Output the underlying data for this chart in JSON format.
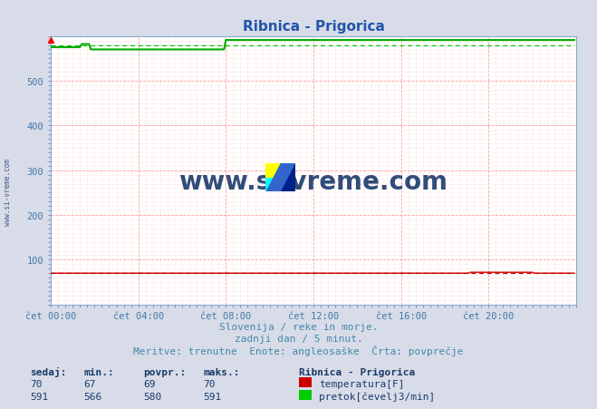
{
  "title": "Ribnica - Prigorica",
  "title_color": "#2255aa",
  "bg_color": "#d8dce8",
  "plot_bg_color": "#ffffff",
  "grid_color_major": "#ff9999",
  "grid_color_minor": "#ffdddd",
  "xlabel_color": "#4477aa",
  "ylabel_color": "#4477aa",
  "ylim": [
    0,
    600
  ],
  "yticks": [
    100,
    200,
    300,
    400,
    500
  ],
  "xlim": [
    0,
    288
  ],
  "xtick_labels": [
    "čet 00:00",
    "čet 04:00",
    "čet 08:00",
    "čet 12:00",
    "čet 16:00",
    "čet 20:00"
  ],
  "xtick_positions": [
    0,
    48,
    96,
    144,
    192,
    240
  ],
  "temp_color": "#cc0000",
  "flow_color": "#00aa00",
  "flow_avg_color": "#00cc00",
  "temp_avg_color": "#cc0000",
  "watermark": "www.si-vreme.com",
  "watermark_color": "#1a3a6a",
  "sub1": "Slovenija / reke in morje.",
  "sub2": "zadnji dan / 5 minut.",
  "sub3": "Meritve: trenutne  Enote: angleosaške  Črta: povprečje",
  "sub_color": "#4488aa",
  "legend_title": "Ribnica - Prigorica",
  "stat_color": "#1a3a6a",
  "stat_headers": [
    "sedaj:",
    "min.:",
    "povpr.:",
    "maks.:"
  ],
  "temp_stats": [
    70,
    67,
    69,
    70
  ],
  "flow_stats": [
    591,
    566,
    580,
    591
  ],
  "legend_temp": "temperatura[F]",
  "legend_flow": "pretok[čevelj3/min]",
  "n_points": 288,
  "flow_seg1_end": 17,
  "flow_seg1_value": 575,
  "flow_bump_end": 22,
  "flow_bump_value": 582,
  "flow_dip_end": 96,
  "flow_dip_value": 570,
  "flow_high_value": 591,
  "flow_avg_value": 580
}
